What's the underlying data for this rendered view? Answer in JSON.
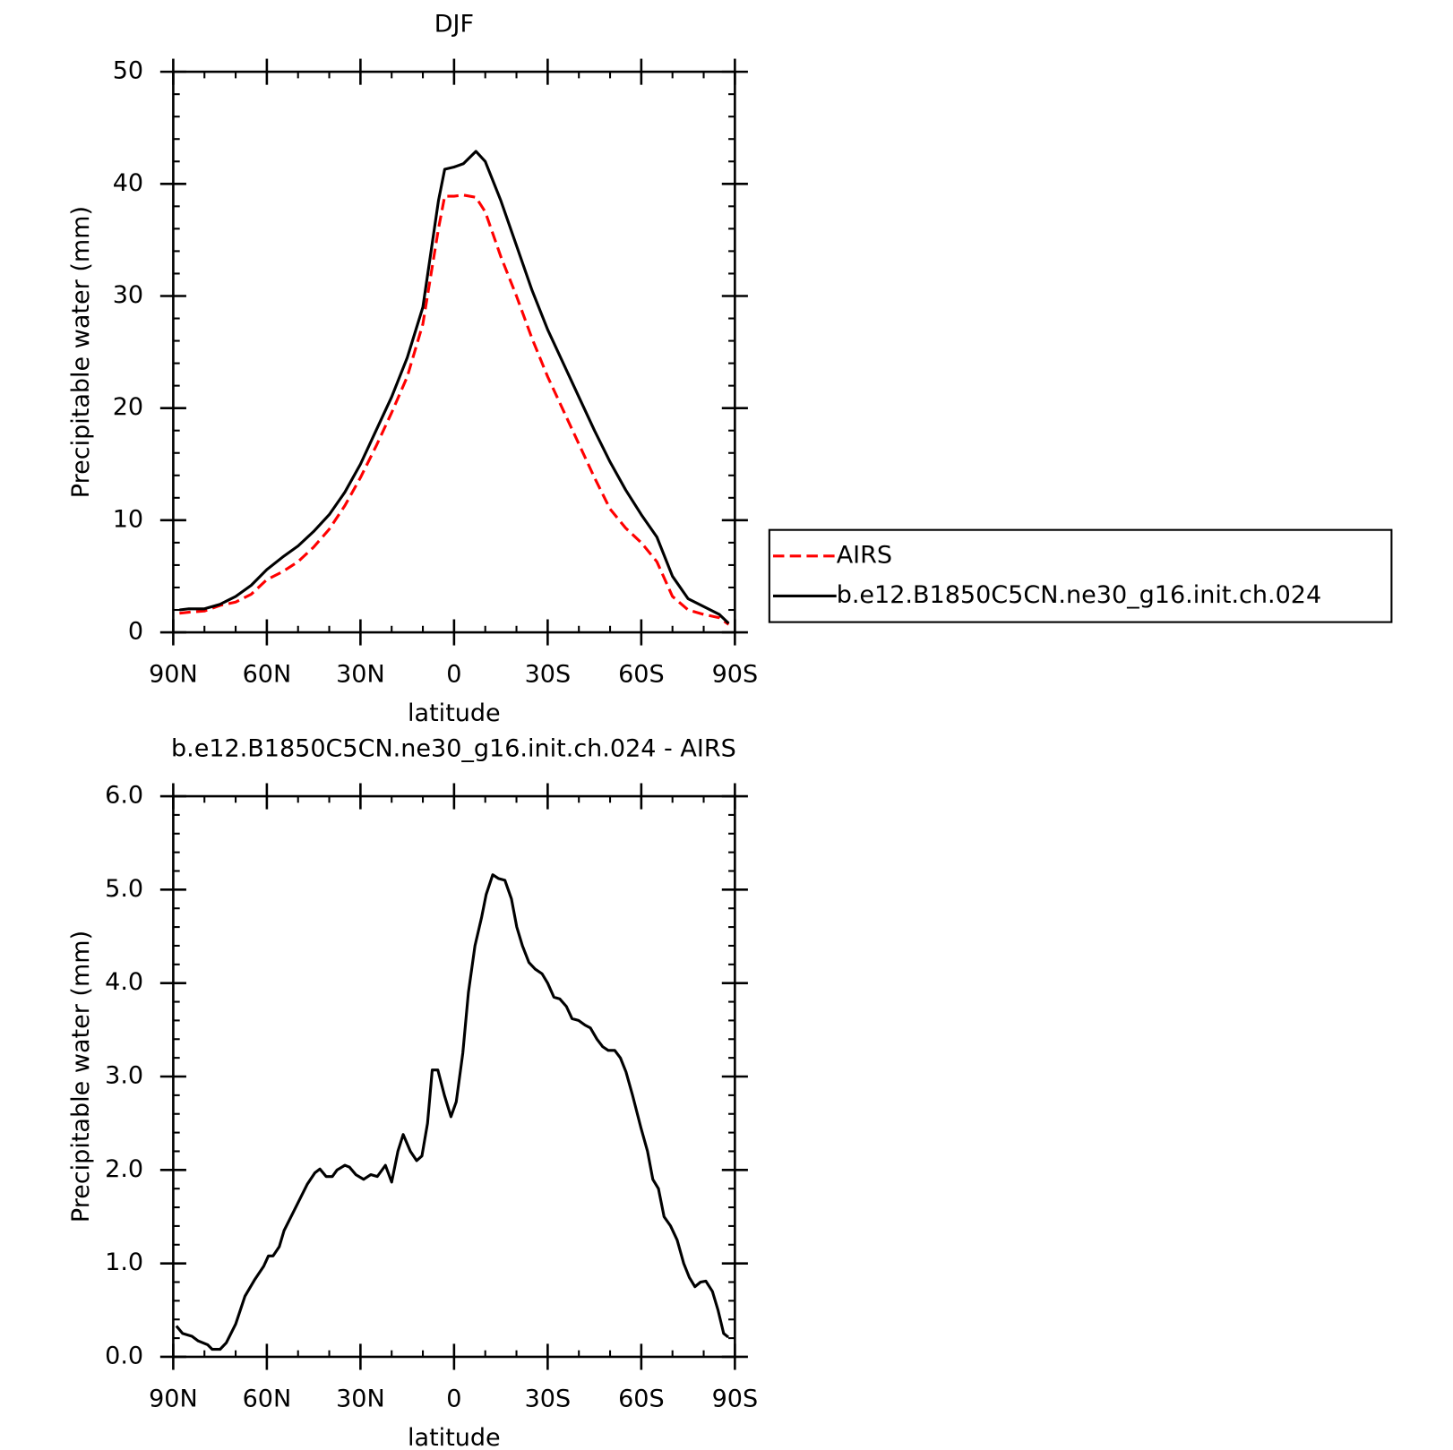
{
  "chart_data": [
    {
      "type": "line",
      "title": "DJF",
      "xlabel": "latitude",
      "ylabel": "Precipitable water (mm)",
      "x": [
        88,
        85,
        80,
        75,
        70,
        65,
        60,
        55,
        50,
        45,
        40,
        35,
        30,
        25,
        20,
        15,
        10,
        5,
        3,
        0,
        -3,
        -7,
        -10,
        -15,
        -20,
        -25,
        -30,
        -35,
        -40,
        -45,
        -50,
        -55,
        -60,
        -65,
        -70,
        -75,
        -80,
        -85,
        -88
      ],
      "series": [
        {
          "name": "AIRS",
          "color": "#ff0000",
          "linestyle": "dashed",
          "values": [
            1.7,
            1.8,
            1.9,
            2.4,
            2.7,
            3.4,
            4.7,
            5.4,
            6.3,
            7.6,
            9.2,
            11.3,
            13.8,
            16.6,
            19.6,
            22.8,
            27.5,
            36.0,
            38.9,
            38.9,
            39.0,
            38.8,
            37.5,
            33.5,
            30.0,
            26.2,
            22.8,
            19.8,
            16.8,
            13.8,
            11.0,
            9.3,
            8.0,
            6.3,
            3.2,
            2.0,
            1.6,
            1.3,
            0.7
          ]
        },
        {
          "name": "b.e12.B1850C5CN.ne30_g16.init.ch.024",
          "color": "#000000",
          "linestyle": "solid",
          "values": [
            2.0,
            2.1,
            2.1,
            2.5,
            3.2,
            4.2,
            5.6,
            6.7,
            7.7,
            9.0,
            10.5,
            12.5,
            15.0,
            18.0,
            21.0,
            24.5,
            29.0,
            38.5,
            41.3,
            41.5,
            41.8,
            42.9,
            42.0,
            38.5,
            34.5,
            30.5,
            27.0,
            24.0,
            21.0,
            18.0,
            15.2,
            12.7,
            10.5,
            8.5,
            5.0,
            3.0,
            2.3,
            1.6,
            0.8
          ]
        }
      ],
      "xlim": [
        90,
        -90
      ],
      "xticks": [
        {
          "value": 90,
          "label": "90N"
        },
        {
          "value": 60,
          "label": "60N"
        },
        {
          "value": 30,
          "label": "30N"
        },
        0,
        {
          "value": -30,
          "label": "30S"
        },
        {
          "value": -60,
          "label": "60S"
        },
        {
          "value": -90,
          "label": "90S"
        }
      ],
      "ylim": [
        0,
        50
      ],
      "yticks": [
        0,
        10,
        20,
        30,
        40,
        50
      ],
      "grid": false,
      "legend": "right"
    },
    {
      "type": "line",
      "title": "b.e12.B1850C5CN.ne30_g16.init.ch.024 - AIRS",
      "xlabel": "latitude",
      "ylabel": "Precipitable water (mm)",
      "x": [
        89,
        87,
        84,
        82,
        79,
        77.5,
        75,
        73,
        70,
        67,
        64,
        61,
        59.5,
        58,
        56,
        54.5,
        51.5,
        47,
        44.6,
        43,
        41,
        39,
        37.5,
        35,
        33.5,
        31.5,
        29,
        26.7,
        24.6,
        22,
        20,
        18,
        16.3,
        14,
        12,
        10.3,
        8.5,
        7,
        5.2,
        3.1,
        1,
        -0.7,
        -2.8,
        -4.6,
        -6.7,
        -8.8,
        -10.3,
        -12.4,
        -14.2,
        -16.3,
        -18.4,
        -20.1,
        -21.9,
        -24,
        -26,
        -28.2,
        -30,
        -32,
        -33.9,
        -36,
        -37.8,
        -39.9,
        -42,
        -43.7,
        -45.8,
        -47.6,
        -49.4,
        -51.5,
        -53.3,
        -55.1,
        -57.2,
        -59.9,
        -62,
        -63.7,
        -65.5,
        -67.3,
        -69.4,
        -71.5,
        -73.6,
        -75.4,
        -77.2,
        -79,
        -80.7,
        -82.8,
        -84.6,
        -86.4,
        -87.9
      ],
      "series": [
        {
          "name": "difference",
          "color": "#000000",
          "linestyle": "solid",
          "values": [
            0.33,
            0.25,
            0.22,
            0.17,
            0.13,
            0.08,
            0.08,
            0.15,
            0.35,
            0.65,
            0.82,
            0.97,
            1.08,
            1.08,
            1.18,
            1.35,
            1.55,
            1.85,
            1.97,
            2.01,
            1.93,
            1.93,
            2.0,
            2.05,
            2.03,
            1.95,
            1.9,
            1.95,
            1.93,
            2.05,
            1.87,
            2.2,
            2.38,
            2.2,
            2.1,
            2.15,
            2.5,
            3.07,
            3.07,
            2.8,
            2.57,
            2.73,
            3.25,
            3.9,
            4.4,
            4.7,
            4.95,
            5.16,
            5.12,
            5.1,
            4.9,
            4.6,
            4.4,
            4.22,
            4.15,
            4.1,
            4.0,
            3.85,
            3.83,
            3.75,
            3.62,
            3.6,
            3.55,
            3.52,
            3.4,
            3.32,
            3.28,
            3.28,
            3.2,
            3.05,
            2.8,
            2.45,
            2.2,
            1.9,
            1.8,
            1.5,
            1.4,
            1.25,
            1.0,
            0.85,
            0.75,
            0.8,
            0.81,
            0.7,
            0.5,
            0.25,
            0.21
          ]
        }
      ],
      "xlim": [
        90,
        -90
      ],
      "xticks": [
        {
          "value": 90,
          "label": "90N"
        },
        {
          "value": 60,
          "label": "60N"
        },
        {
          "value": 30,
          "label": "30N"
        },
        0,
        {
          "value": -30,
          "label": "30S"
        },
        {
          "value": -60,
          "label": "60S"
        },
        {
          "value": -90,
          "label": "90S"
        }
      ],
      "ylim": [
        0,
        6
      ],
      "yticks": [
        {
          "value": 0,
          "label": "0.0"
        },
        {
          "value": 1,
          "label": "1.0"
        },
        {
          "value": 2,
          "label": "2.0"
        },
        {
          "value": 3,
          "label": "3.0"
        },
        {
          "value": 4,
          "label": "4.0"
        },
        {
          "value": 5,
          "label": "5.0"
        },
        {
          "value": 6,
          "label": "6.0"
        }
      ],
      "grid": false
    }
  ]
}
